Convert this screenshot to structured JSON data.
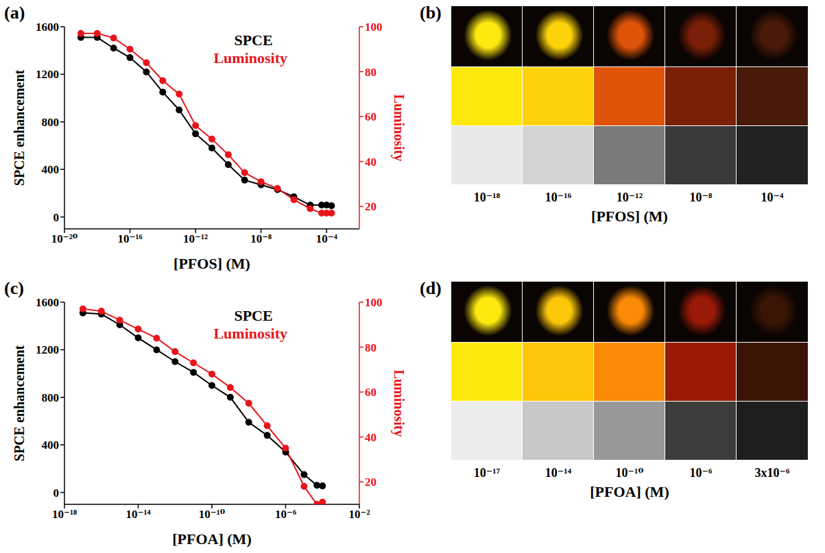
{
  "chart_data": [
    {
      "type": "line",
      "panel": "(a)",
      "x_label": "[PFOS] (M)",
      "y_label": "SPCE enhancement",
      "y2_label": "Luminosity",
      "log": "x",
      "legend": "upper right",
      "x": [
        1e-19,
        1e-18,
        1e-17,
        1e-16,
        1e-15,
        1e-14,
        1e-13,
        1e-12,
        1e-11,
        1e-10,
        1e-09,
        1e-08,
        1e-07,
        1e-06,
        1e-05,
        5e-05,
        0.0001,
        0.0002
      ],
      "series": [
        {
          "name": "SPCE",
          "color": "#000000",
          "marker": "circle",
          "values": [
            1510,
            1510,
            1420,
            1340,
            1220,
            1050,
            900,
            700,
            580,
            440,
            310,
            270,
            230,
            170,
            100,
            100,
            100,
            95
          ]
        },
        {
          "name": "Luminosity",
          "color": "#e8141b",
          "marker": "circle",
          "axis": "y2",
          "values": [
            97,
            97,
            95,
            90,
            84,
            76,
            70,
            56,
            50,
            43,
            35,
            31,
            28,
            23,
            19,
            17,
            17,
            17
          ]
        }
      ],
      "xlim": [
        1e-20,
        0.01
      ],
      "xticks": [
        {
          "value": 1e-20,
          "label": "10⁻²⁰"
        },
        {
          "value": 1e-16,
          "label": "10⁻¹⁶"
        },
        {
          "value": 1e-12,
          "label": "10⁻¹²"
        },
        {
          "value": 1e-08,
          "label": "10⁻⁸"
        },
        {
          "value": 0.0001,
          "label": "10⁻⁴"
        }
      ],
      "ylim": [
        -100,
        1600
      ],
      "yticks": [
        0,
        400,
        800,
        1200,
        1600
      ],
      "y2lim": [
        10,
        100
      ],
      "y2ticks": [
        20,
        40,
        60,
        80,
        100
      ]
    },
    {
      "type": "swatches",
      "panel": "(b)",
      "x_label": "[PFOS] (M)",
      "categories": [
        "10⁻¹⁸",
        "10⁻¹⁶",
        "10⁻¹²",
        "10⁻⁸",
        "10⁻⁴"
      ],
      "rows": [
        {
          "colors": [
            "#fde910",
            "#fdd20a",
            "#e0540a",
            "#7a1f08",
            "#4a1a08"
          ]
        },
        {
          "colors": [
            "#e8e8e8",
            "#d4d4d4",
            "#7a7a7a",
            "#3a3a3a",
            "#222222"
          ]
        }
      ]
    },
    {
      "type": "line",
      "panel": "(c)",
      "x_label": "[PFOA] (M)",
      "y_label": "SPCE enhancement",
      "y2_label": "Luminosity",
      "log": "x",
      "legend": "upper right",
      "x": [
        1e-17,
        1e-16,
        1e-15,
        1e-14,
        1e-13,
        1e-12,
        1e-11,
        1e-10,
        1e-09,
        1e-08,
        1e-07,
        1e-06,
        1e-05,
        5e-05,
        0.0001
      ],
      "series": [
        {
          "name": "SPCE",
          "color": "#000000",
          "marker": "circle",
          "values": [
            1510,
            1500,
            1410,
            1300,
            1200,
            1100,
            1010,
            900,
            800,
            590,
            480,
            340,
            150,
            60,
            55
          ]
        },
        {
          "name": "Luminosity",
          "color": "#e8141b",
          "marker": "circle",
          "axis": "y2",
          "values": [
            97,
            96,
            92,
            88,
            84,
            78,
            73,
            68,
            62,
            55,
            45,
            35,
            18,
            10,
            11
          ]
        }
      ],
      "xlim": [
        1e-18,
        0.01
      ],
      "xticks": [
        {
          "value": 1e-18,
          "label": "10⁻¹⁸"
        },
        {
          "value": 1e-14,
          "label": "10⁻¹⁴"
        },
        {
          "value": 1e-10,
          "label": "10⁻¹⁰"
        },
        {
          "value": 1e-06,
          "label": "10⁻⁶"
        },
        {
          "value": 0.01,
          "label": "10⁻²"
        }
      ],
      "ylim": [
        -100,
        1600
      ],
      "yticks": [
        0,
        400,
        800,
        1200,
        1600
      ],
      "y2lim": [
        10,
        100
      ],
      "y2ticks": [
        20,
        40,
        60,
        80,
        100
      ]
    },
    {
      "type": "swatches",
      "panel": "(d)",
      "x_label": "[PFOA] (M)",
      "categories": [
        "10⁻¹⁷",
        "10⁻¹⁴",
        "10⁻¹⁰",
        "10⁻⁶",
        "3x10⁻⁶"
      ],
      "rows": [
        {
          "colors": [
            "#fde910",
            "#fcc70a",
            "#fb8a06",
            "#9a1a08",
            "#3a1506"
          ]
        },
        {
          "colors": [
            "#ececec",
            "#c8c8c8",
            "#989898",
            "#3c3c3c",
            "#1e1e1e"
          ]
        }
      ]
    }
  ]
}
